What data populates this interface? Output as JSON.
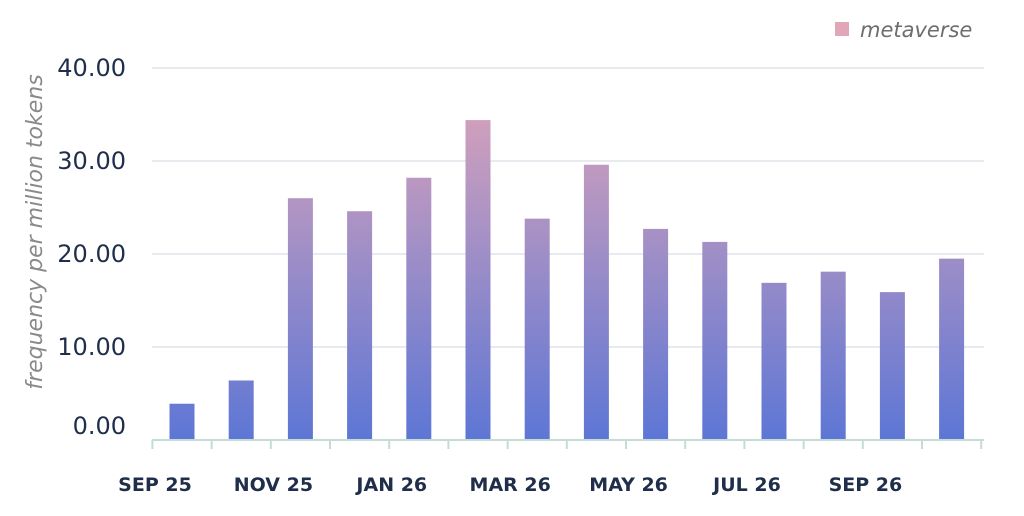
{
  "chart_data": {
    "type": "bar",
    "ylabel": "frequency per million tokens",
    "ylim": [
      0,
      40
    ],
    "yticks": [
      "0.00",
      "10.00",
      "20.00",
      "30.00",
      "40.00"
    ],
    "xtick_labels": [
      "SEP 25",
      "NOV 25",
      "JAN 26",
      "MAR 26",
      "MAY 26",
      "JUL 26",
      "SEP 26"
    ],
    "xtick_indices": [
      0,
      2,
      4,
      6,
      8,
      10,
      12
    ],
    "categories": [
      "Sep 25",
      "Oct 25",
      "Nov 25",
      "Dec 25",
      "Jan 26",
      "Feb 26",
      "Mar 26",
      "Apr 26",
      "May 26",
      "Jun 26",
      "Jul 26",
      "Aug 26",
      "Sep 26",
      "Oct 26"
    ],
    "series": [
      {
        "name": "metaverse",
        "values": [
          3.9,
          6.4,
          26.0,
          24.6,
          28.2,
          34.4,
          23.8,
          29.6,
          22.7,
          21.3,
          16.9,
          18.1,
          15.9,
          19.5
        ]
      }
    ],
    "grid": true,
    "legend_position": "top-right",
    "colors": {
      "bar_top": "#e1a6b8",
      "bar_bottom": "#5d76d5",
      "grid": "#dfe3e8",
      "axis": "#c5dcd6",
      "tick_text": "#1f2e4a"
    }
  }
}
